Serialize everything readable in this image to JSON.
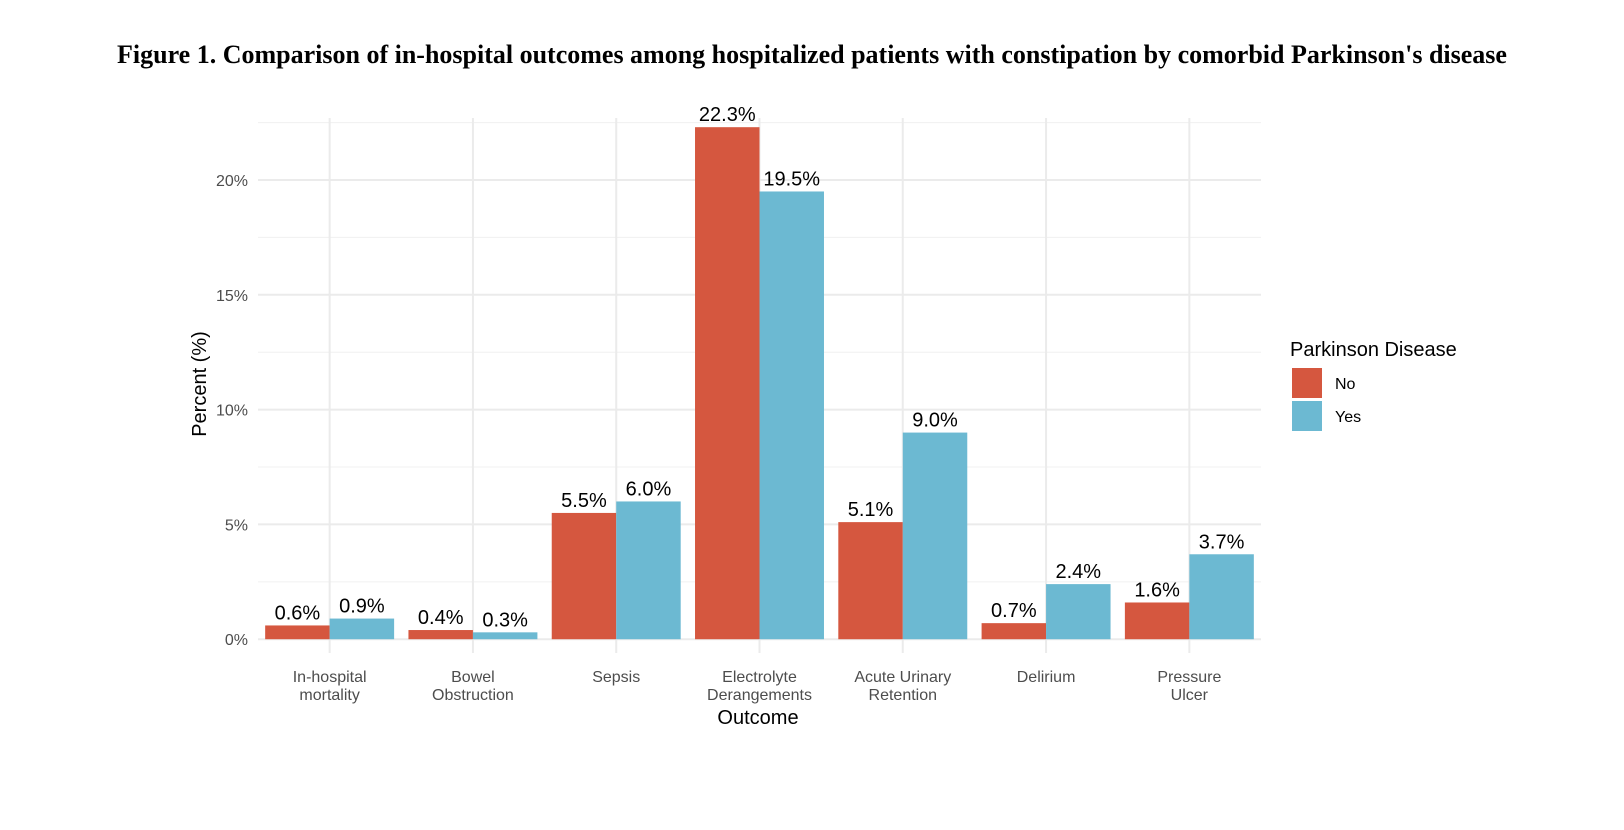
{
  "title": "Figure 1. Comparison of in-hospital outcomes among hospitalized patients with constipation by comorbid Parkinson's disease",
  "chart_data": {
    "type": "bar",
    "title": "Figure 1. Comparison of in-hospital outcomes among hospitalized patients with constipation by comorbid Parkinson's disease",
    "xlabel": "Outcome",
    "ylabel": "Percent (%)",
    "categories": [
      [
        "In-hospital",
        "mortality"
      ],
      [
        "Bowel",
        "Obstruction"
      ],
      [
        "Sepsis"
      ],
      [
        "Electrolyte",
        "Derangements"
      ],
      [
        "Acute Urinary",
        "Retention"
      ],
      [
        "Delirium"
      ],
      [
        "Pressure",
        "Ulcer"
      ]
    ],
    "series": [
      {
        "name": "No",
        "color": "#D5573F",
        "values": [
          0.6,
          0.4,
          5.5,
          22.3,
          5.1,
          0.7,
          1.6
        ],
        "labels": [
          "0.6%",
          "0.4%",
          "5.5%",
          "22.3%",
          "5.1%",
          "0.7%",
          "1.6%"
        ]
      },
      {
        "name": "Yes",
        "color": "#6CB9D2",
        "values": [
          0.9,
          0.3,
          6.0,
          19.5,
          9.0,
          2.4,
          3.7
        ],
        "labels": [
          "0.9%",
          "0.3%",
          "6.0%",
          "19.5%",
          "9.0%",
          "2.4%",
          "3.7%"
        ]
      }
    ],
    "yticks": [
      0,
      5,
      10,
      15,
      20
    ],
    "ytick_labels": [
      "0%",
      "5%",
      "10%",
      "15%",
      "20%"
    ],
    "ylim": [
      -0.6,
      22.7
    ],
    "grid": true,
    "legend": {
      "title": "Parkinson Disease",
      "position": "right"
    }
  }
}
